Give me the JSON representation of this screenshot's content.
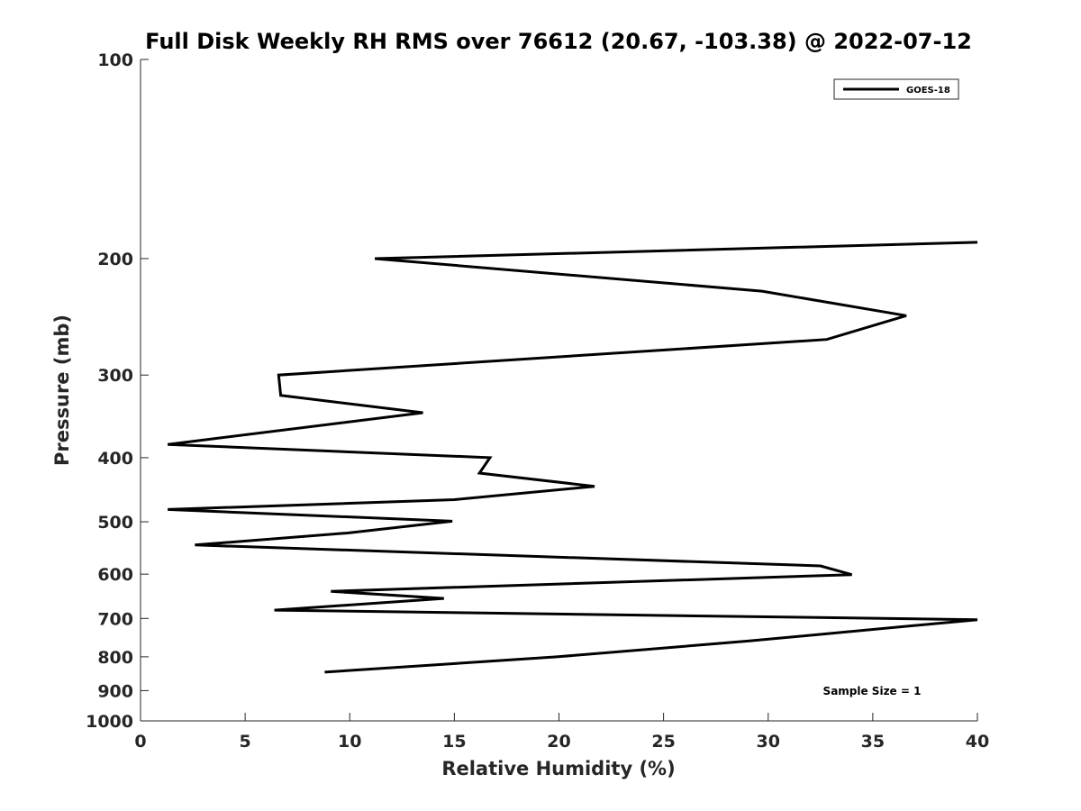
{
  "chart_data": {
    "type": "line",
    "title": "Full Disk Weekly RH RMS over 76612 (20.67, -103.38) @ 2022-07-12",
    "xlabel": "Relative Humidity (%)",
    "ylabel": "Pressure (mb)",
    "xlim": [
      0,
      40
    ],
    "ylim": [
      100,
      1000
    ],
    "y_scale": "log",
    "y_reversed": true,
    "grid": false,
    "x_ticks": [
      0,
      5,
      10,
      15,
      20,
      25,
      30,
      35,
      40
    ],
    "y_ticks": [
      100,
      200,
      300,
      400,
      500,
      600,
      700,
      800,
      900,
      1000
    ],
    "legend": {
      "placement": "top-right",
      "entries": [
        "GOES-18"
      ]
    },
    "annotation": "Sample Size = 1",
    "series": [
      {
        "name": "GOES-18",
        "color": "#000000",
        "points": [
          {
            "x": 40.0,
            "y": 189
          },
          {
            "x": 11.2,
            "y": 200
          },
          {
            "x": 29.7,
            "y": 224
          },
          {
            "x": 36.6,
            "y": 244
          },
          {
            "x": 32.8,
            "y": 265
          },
          {
            "x": 6.6,
            "y": 300
          },
          {
            "x": 6.7,
            "y": 322
          },
          {
            "x": 13.5,
            "y": 342
          },
          {
            "x": 1.3,
            "y": 382
          },
          {
            "x": 16.7,
            "y": 400
          },
          {
            "x": 16.2,
            "y": 422
          },
          {
            "x": 21.7,
            "y": 442
          },
          {
            "x": 15.0,
            "y": 463
          },
          {
            "x": 1.3,
            "y": 479
          },
          {
            "x": 14.9,
            "y": 499
          },
          {
            "x": 9.9,
            "y": 520
          },
          {
            "x": 2.6,
            "y": 542
          },
          {
            "x": 32.5,
            "y": 583
          },
          {
            "x": 34.0,
            "y": 601
          },
          {
            "x": 9.1,
            "y": 637
          },
          {
            "x": 14.5,
            "y": 653
          },
          {
            "x": 6.4,
            "y": 680
          },
          {
            "x": 40.0,
            "y": 703
          },
          {
            "x": 29.1,
            "y": 757
          },
          {
            "x": 19.9,
            "y": 800
          },
          {
            "x": 8.8,
            "y": 844
          }
        ]
      }
    ]
  }
}
